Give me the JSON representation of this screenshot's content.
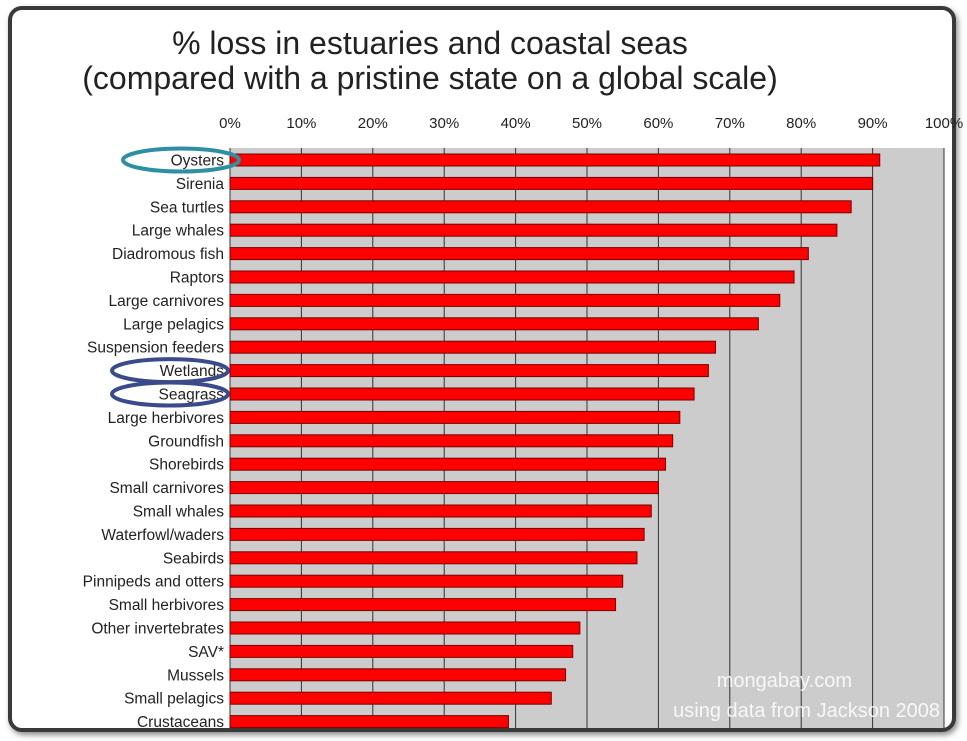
{
  "chart_data": {
    "type": "bar",
    "orientation": "horizontal",
    "title": [
      "% loss in estuaries and coastal seas",
      "(compared with a pristine state on a global scale)"
    ],
    "x_ticks": [
      "0%",
      "10%",
      "20%",
      "30%",
      "40%",
      "50%",
      "60%",
      "70%",
      "80%",
      "90%",
      "100%"
    ],
    "xlim": [
      0,
      100
    ],
    "x_axis_position": "top",
    "grid": true,
    "categories": [
      "Oysters",
      "Sirenia",
      "Sea turtles",
      "Large whales",
      "Diadromous fish",
      "Raptors",
      "Large carnivores",
      "Large pelagics",
      "Suspension feeders",
      "Wetlands",
      "Seagrass",
      "Large herbivores",
      "Groundfish",
      "Shorebirds",
      "Small carnivores",
      "Small whales",
      "Waterfowl/waders",
      "Seabirds",
      "Pinnipeds and otters",
      "Small herbivores",
      "Other invertebrates",
      "SAV*",
      "Mussels",
      "Small pelagics",
      "Crustaceans"
    ],
    "values": [
      91,
      90,
      87,
      85,
      81,
      79,
      77,
      74,
      68,
      67,
      65,
      63,
      62,
      61,
      60,
      59,
      58,
      57,
      55,
      54,
      49,
      48,
      47,
      45,
      39
    ],
    "highlighted_categories": [
      "Oysters",
      "Wetlands",
      "Seagrass"
    ],
    "watermark": [
      "mongabay.com",
      "using data from Jackson 2008"
    ],
    "colors": {
      "bar_fill": "#ff0000",
      "bar_stroke": "#7a0000",
      "plot_background": "#cccccc",
      "gridline": "#333333",
      "highlight_teal": "#2e8fa3",
      "highlight_navy": "#3a4a8a"
    }
  }
}
